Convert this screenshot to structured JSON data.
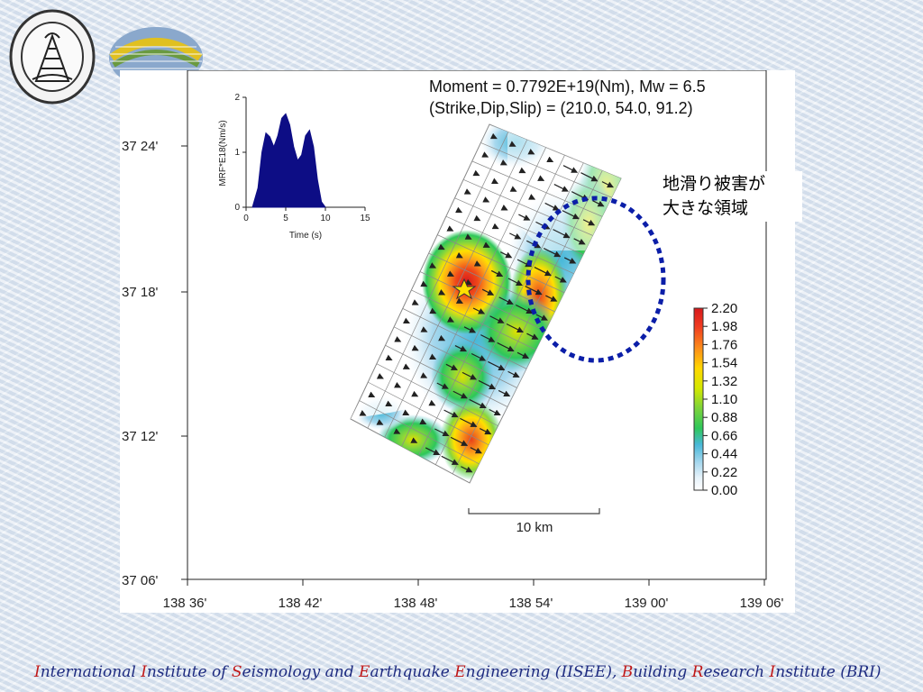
{
  "figure": {
    "header_moment": "Moment = 0.7792E+19(Nm), Mw = 6.5",
    "header_mechanism": "(Strike,Dip,Slip) = (210.0, 54.0,   91.2)",
    "annotation_lines": [
      "地滑り被害が",
      "大きな領域"
    ],
    "scale_bar_label": "10 km",
    "x_ticks": [
      "138 36'",
      "138 42'",
      "138 48'",
      "138 54'",
      "139 00'",
      "139 06'"
    ],
    "y_ticks": [
      "37 24'",
      "37 18'",
      "37 12'",
      "37 06'"
    ],
    "legend_values": [
      "2.20",
      "1.98",
      "1.76",
      "1.54",
      "1.32",
      "1.10",
      "0.88",
      "0.66",
      "0.44",
      "0.22",
      "0.00"
    ],
    "legend_colors": [
      "#e41a1c",
      "#f03b20",
      "#fc8d1a",
      "#ffd700",
      "#d4e800",
      "#7cd43a",
      "#2ec75a",
      "#48b8d8",
      "#a8d8ee",
      "#e6f2fa",
      "#ffffff"
    ],
    "annotation_ellipse_color": "#0b1ea8",
    "hypocenter_marker": "star-icon"
  },
  "inset": {
    "ylabel": "MRF*E18(Nm/s)",
    "xlabel": "Time (s)",
    "x_ticks": [
      "0",
      "5",
      "10",
      "15"
    ],
    "y_ticks": [
      "0",
      "1",
      "2"
    ],
    "fill_color": "#0d0d85"
  },
  "chart_data": {
    "type": "area",
    "xlabel": "Time (s)",
    "ylabel": "MRF*E18(Nm/s)",
    "xlim": [
      0,
      15
    ],
    "ylim": [
      0,
      2
    ],
    "x": [
      0.8,
      1.5,
      2.0,
      2.5,
      3.0,
      3.5,
      4.0,
      4.5,
      5.0,
      5.5,
      6.0,
      6.5,
      7.0,
      7.5,
      8.0,
      8.5,
      9.0,
      9.5,
      10.0
    ],
    "values": [
      0.0,
      0.35,
      1.0,
      1.35,
      1.28,
      1.1,
      1.3,
      1.62,
      1.7,
      1.5,
      1.1,
      0.85,
      0.95,
      1.3,
      1.4,
      1.1,
      0.5,
      0.1,
      0.0
    ]
  },
  "footer": {
    "segments": [
      {
        "cap": "I",
        "rest": "nternational "
      },
      {
        "cap": "I",
        "rest": "nstitute of "
      },
      {
        "cap": "S",
        "rest": "eismology and "
      },
      {
        "cap": "E",
        "rest": "arthquake "
      },
      {
        "cap": "E",
        "rest": "ngineering (IISEE), "
      },
      {
        "cap": "B",
        "rest": "uilding "
      },
      {
        "cap": "R",
        "rest": "esearch "
      },
      {
        "cap": "I",
        "rest": "nstitute (BRI)"
      }
    ]
  }
}
